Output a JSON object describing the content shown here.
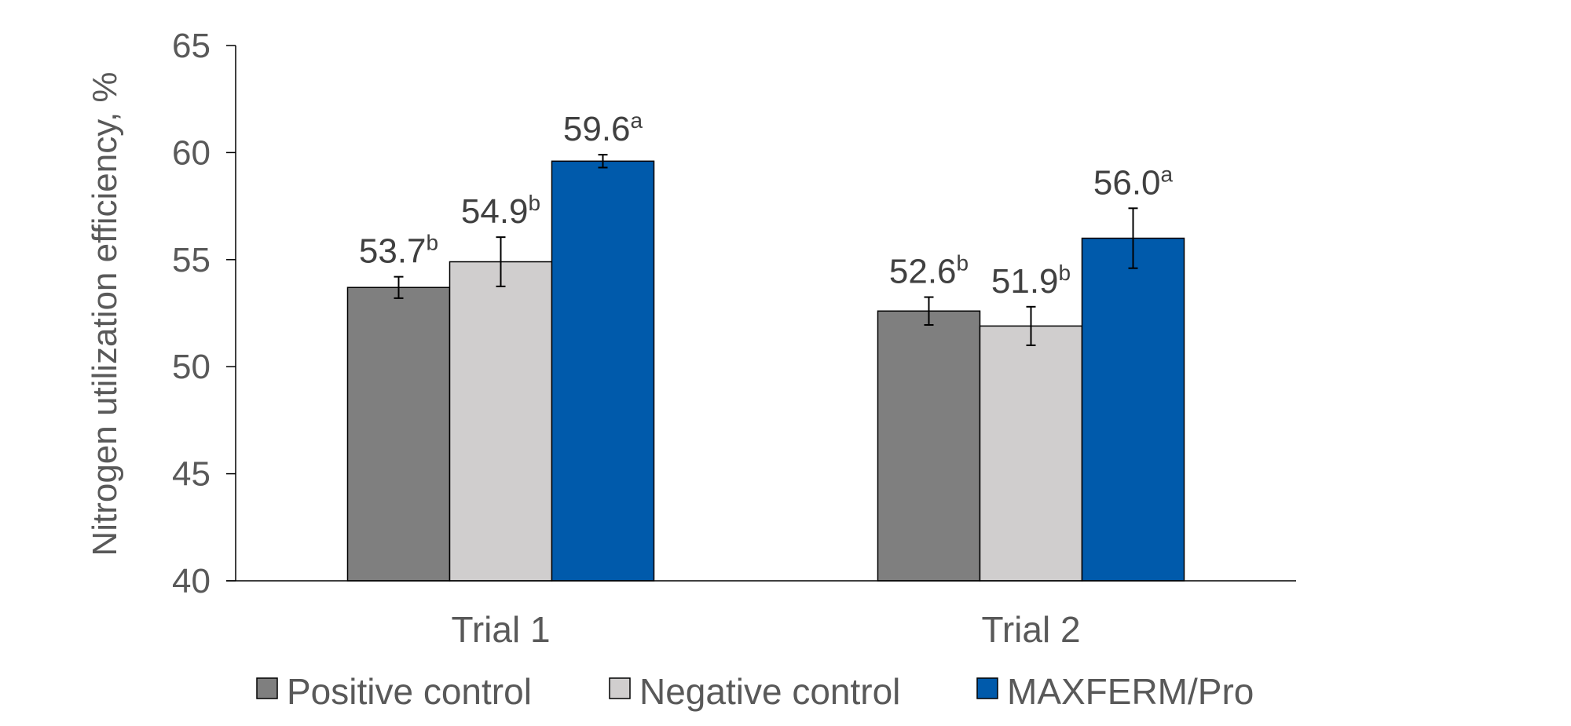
{
  "chart_data": {
    "type": "bar",
    "categories": [
      "Trial 1",
      "Trial 2"
    ],
    "series": [
      {
        "name": "Positive control",
        "color": "#7f7f7f",
        "values": [
          53.7,
          52.6
        ],
        "errors": [
          0.5,
          0.65
        ],
        "labels": [
          "53.7",
          "52.6"
        ],
        "superscripts": [
          "b",
          "b"
        ]
      },
      {
        "name": "Negative control",
        "color": "#d0cece",
        "values": [
          54.9,
          51.9
        ],
        "errors": [
          1.15,
          0.9
        ],
        "labels": [
          "54.9",
          "51.9"
        ],
        "superscripts": [
          "b",
          "b"
        ]
      },
      {
        "name": "MAXFERM/Pro",
        "color": "#005aab",
        "values": [
          59.6,
          56.0
        ],
        "errors": [
          0.3,
          1.4
        ],
        "labels": [
          "59.6",
          "56.0"
        ],
        "superscripts": [
          "a",
          "a"
        ]
      }
    ],
    "ylabel": "Nitrogen utilization efficiency, %",
    "ylim": [
      40,
      65
    ],
    "yticks": [
      "40",
      "45",
      "50",
      "55",
      "60",
      "65"
    ],
    "grid": false,
    "legend": "bottom"
  }
}
